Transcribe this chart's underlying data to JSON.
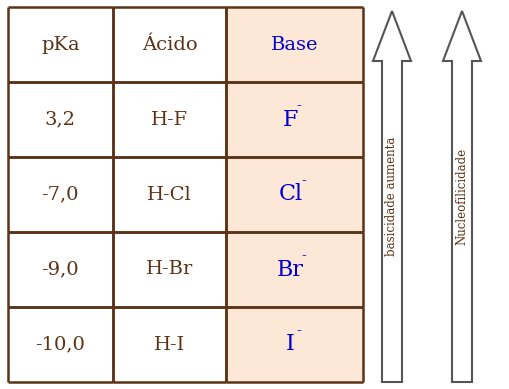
{
  "table_border_color": "#5c3317",
  "table_bg_white": "#ffffff",
  "table_bg_peach": "#fde8d8",
  "header_row": [
    "pKa",
    "Ácido",
    "Base"
  ],
  "rows": [
    [
      "3,2",
      "H-F",
      "F"
    ],
    [
      "-7,0",
      "H-Cl",
      "Cl"
    ],
    [
      "-9,0",
      "H-Br",
      "Br"
    ],
    [
      "-10,0",
      "H-I",
      "I"
    ]
  ],
  "text_color_dark": "#5c3317",
  "text_color_blue": "#0000cc",
  "arrow_label_left": "basicidade aumenta",
  "arrow_label_right": "Nucleofilicidade",
  "fig_bg": "#ffffff",
  "figw": 5.1,
  "figh": 3.89
}
